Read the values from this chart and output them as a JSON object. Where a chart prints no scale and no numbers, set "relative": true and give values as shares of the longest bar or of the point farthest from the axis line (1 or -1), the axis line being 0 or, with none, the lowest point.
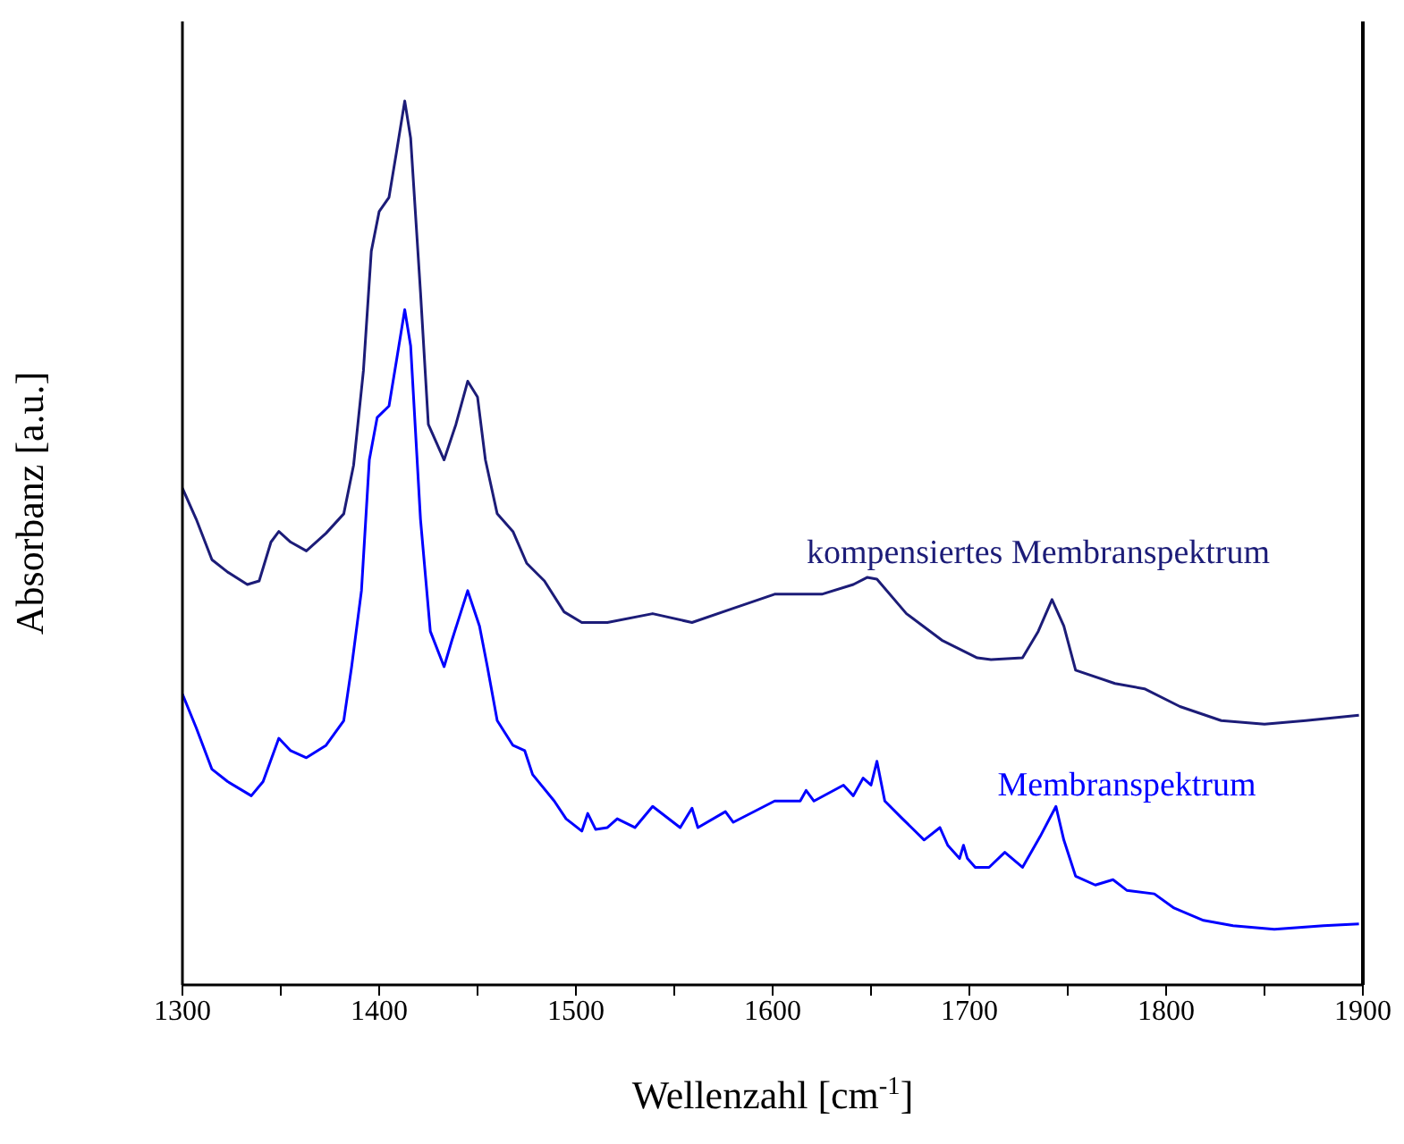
{
  "chart_data": {
    "type": "line",
    "xlabel": "Wellenzahl [cm$^{-1}$]",
    "ylabel": "Absorbanz [a.u.]",
    "relative": true,
    "xlim": [
      1300,
      1900
    ],
    "xticks": [
      1300,
      {
        "value": 1350,
        "label": null
      },
      1400,
      {
        "value": 1450,
        "label": null
      },
      1500,
      {
        "value": 1550,
        "label": null
      },
      1600,
      {
        "value": 1650,
        "label": null
      },
      1700,
      {
        "value": 1750,
        "label": null
      },
      1800,
      {
        "value": 1850,
        "label": null
      },
      1900
    ],
    "marker": "none",
    "line_style": "solid",
    "series": [
      {
        "name": "kompensiertes Membranspektrum",
        "color": "#1c1c78",
        "x": [
          1300,
          1307,
          1315,
          1323,
          1333,
          1339,
          1345,
          1349,
          1355,
          1363,
          1373,
          1382,
          1387,
          1392,
          1396,
          1400,
          1405,
          1409,
          1413,
          1416,
          1421,
          1425,
          1433,
          1439,
          1445,
          1450,
          1454,
          1460,
          1468,
          1475,
          1484,
          1494,
          1503,
          1516,
          1539,
          1559,
          1580,
          1601,
          1625,
          1641,
          1648,
          1653,
          1668,
          1686,
          1704,
          1711,
          1727,
          1735,
          1742,
          1748,
          1754,
          1774,
          1789,
          1807,
          1828,
          1850,
          1871,
          1898
        ],
        "values": [
          0.562,
          0.527,
          0.481,
          0.467,
          0.453,
          0.457,
          0.501,
          0.513,
          0.501,
          0.491,
          0.511,
          0.533,
          0.588,
          0.695,
          0.83,
          0.875,
          0.891,
          0.945,
          1.0,
          0.958,
          0.784,
          0.634,
          0.594,
          0.634,
          0.683,
          0.665,
          0.594,
          0.533,
          0.513,
          0.477,
          0.457,
          0.422,
          0.41,
          0.41,
          0.42,
          0.41,
          0.426,
          0.442,
          0.442,
          0.453,
          0.461,
          0.459,
          0.42,
          0.39,
          0.37,
          0.368,
          0.37,
          0.4,
          0.436,
          0.406,
          0.356,
          0.341,
          0.335,
          0.315,
          0.299,
          0.295,
          0.299,
          0.305
        ]
      },
      {
        "name": "Membranspektrum",
        "color": "#0000ff",
        "x": [
          1300,
          1307,
          1315,
          1323,
          1335,
          1341,
          1349,
          1355,
          1363,
          1373,
          1382,
          1386,
          1391,
          1395,
          1399,
          1405,
          1409,
          1413,
          1416,
          1421,
          1426,
          1433,
          1437,
          1445,
          1451,
          1455,
          1460,
          1468,
          1474,
          1478,
          1489,
          1495,
          1503,
          1506,
          1510,
          1516,
          1521,
          1530,
          1539,
          1553,
          1559,
          1562,
          1576,
          1580,
          1601,
          1614,
          1617,
          1621,
          1636,
          1641,
          1646,
          1650,
          1653,
          1657,
          1666,
          1677,
          1685,
          1689,
          1695,
          1697,
          1699,
          1703,
          1710,
          1718,
          1727,
          1736,
          1744,
          1748,
          1754,
          1764,
          1773,
          1780,
          1794,
          1804,
          1819,
          1834,
          1855,
          1880,
          1898
        ],
        "values": [
          0.329,
          0.291,
          0.244,
          0.23,
          0.214,
          0.23,
          0.279,
          0.265,
          0.257,
          0.271,
          0.299,
          0.36,
          0.446,
          0.594,
          0.642,
          0.655,
          0.709,
          0.764,
          0.723,
          0.527,
          0.4,
          0.36,
          0.39,
          0.446,
          0.406,
          0.36,
          0.299,
          0.271,
          0.265,
          0.238,
          0.208,
          0.188,
          0.174,
          0.194,
          0.176,
          0.178,
          0.188,
          0.178,
          0.202,
          0.178,
          0.2,
          0.178,
          0.196,
          0.184,
          0.208,
          0.208,
          0.22,
          0.208,
          0.226,
          0.214,
          0.234,
          0.226,
          0.253,
          0.208,
          0.188,
          0.164,
          0.178,
          0.158,
          0.143,
          0.158,
          0.143,
          0.133,
          0.133,
          0.15,
          0.133,
          0.168,
          0.202,
          0.164,
          0.123,
          0.113,
          0.119,
          0.107,
          0.103,
          0.087,
          0.073,
          0.067,
          0.063,
          0.067,
          0.069
        ]
      }
    ]
  }
}
